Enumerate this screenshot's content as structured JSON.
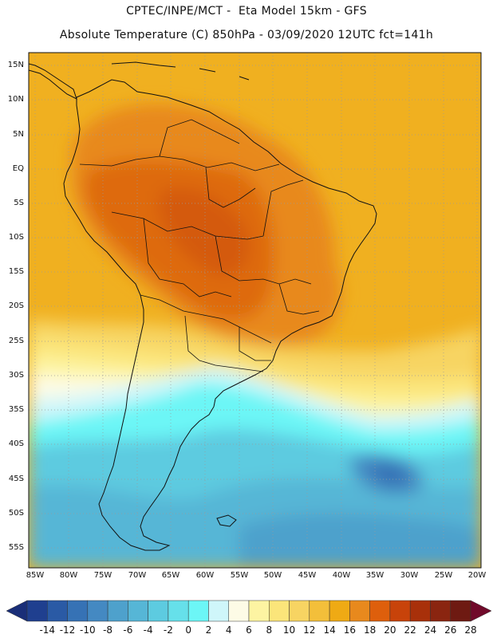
{
  "header": {
    "line1": "CPTEC/INPE/MCT -  Eta Model 15km - GFS",
    "line2": "Absolute Temperature (C) 850hPa - 03/09/2020 12UTC fct=141h"
  },
  "map": {
    "lat_labels": [
      "15N",
      "10N",
      "5N",
      "EQ",
      "5S",
      "10S",
      "15S",
      "20S",
      "25S",
      "30S",
      "35S",
      "40S",
      "45S",
      "50S",
      "55S"
    ],
    "lon_labels": [
      "85W",
      "80W",
      "75W",
      "70W",
      "65W",
      "60W",
      "55W",
      "50W",
      "45W",
      "40W",
      "35W",
      "30W",
      "25W",
      "20W"
    ]
  },
  "colorbar": {
    "labels": [
      "-14",
      "-12",
      "-10",
      "-8",
      "-6",
      "-4",
      "-2",
      "0",
      "2",
      "4",
      "6",
      "8",
      "10",
      "12",
      "14",
      "16",
      "18",
      "20",
      "22",
      "24",
      "26",
      "28"
    ],
    "colors": [
      "#1f3f8f",
      "#2a5aa5",
      "#3672b5",
      "#4489c2",
      "#4ea1cc",
      "#56b6d6",
      "#5dcbe0",
      "#66e0ea",
      "#6cf6f6",
      "#cff6fa",
      "#fdfbe6",
      "#fdf4a2",
      "#fbe57a",
      "#f7d462",
      "#f3bf3a",
      "#efaa14",
      "#e8891d",
      "#de5f0c",
      "#c8430a",
      "#a8300a",
      "#8a2510",
      "#6e1a12"
    ],
    "low_arrow_color": "#1a2e78",
    "high_arrow_color": "#700a2a"
  }
}
